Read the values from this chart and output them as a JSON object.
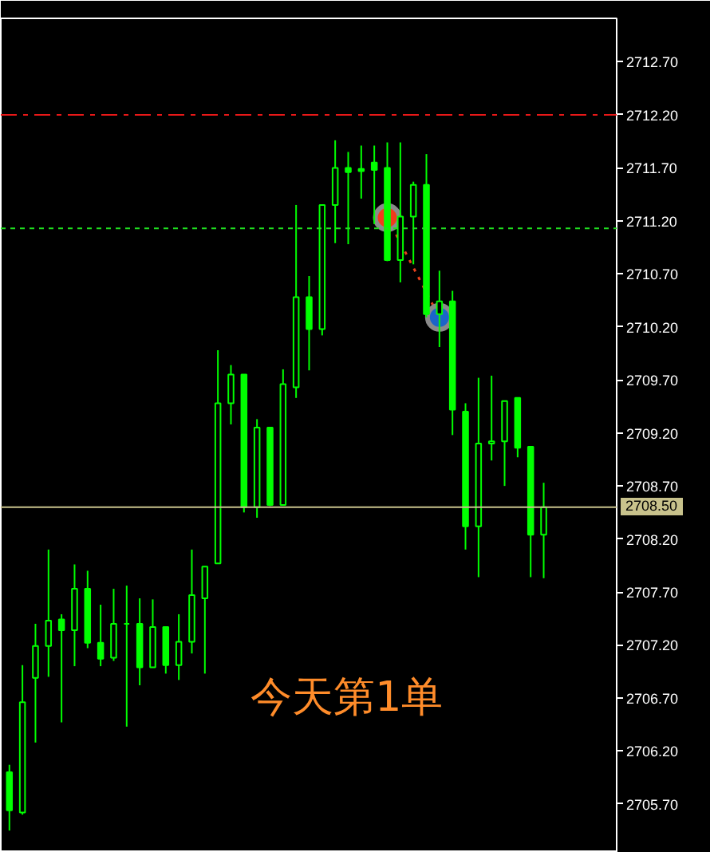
{
  "chart_data": {
    "type": "candlestick",
    "color": "#00ff00",
    "categories": [
      null,
      null,
      null,
      null,
      null,
      null,
      null,
      null,
      null,
      null,
      null,
      null,
      null,
      null,
      null,
      null,
      null,
      null,
      null,
      null,
      null,
      null,
      null,
      null,
      null,
      null,
      null,
      null,
      null,
      null,
      null,
      null,
      null,
      null,
      null,
      null,
      null,
      null,
      null,
      null,
      null,
      null
    ],
    "ohlc": [
      [
        2706.0,
        2706.07,
        2705.45,
        2705.64
      ],
      [
        2705.62,
        2707.01,
        2705.6,
        2706.66
      ],
      [
        2706.89,
        2707.4,
        2706.28,
        2707.19
      ],
      [
        2707.19,
        2708.1,
        2706.9,
        2707.43
      ],
      [
        2707.44,
        2707.49,
        2706.47,
        2707.34
      ],
      [
        2707.34,
        2707.96,
        2707.0,
        2707.73
      ],
      [
        2707.73,
        2707.9,
        2707.17,
        2707.22
      ],
      [
        2707.22,
        2707.58,
        2707.0,
        2707.07
      ],
      [
        2707.08,
        2707.73,
        2707.05,
        2707.4
      ],
      [
        2707.4,
        2707.76,
        2706.43,
        2707.4
      ],
      [
        2707.4,
        2707.64,
        2706.82,
        2706.99
      ],
      [
        2706.99,
        2707.63,
        2706.99,
        2707.37
      ],
      [
        2707.37,
        2707.37,
        2706.93,
        2707.01
      ],
      [
        2707.01,
        2707.49,
        2706.87,
        2707.23
      ],
      [
        2707.23,
        2708.1,
        2707.12,
        2707.67
      ],
      [
        2707.64,
        2707.94,
        2706.93,
        2707.94
      ],
      [
        2707.97,
        2709.98,
        2707.97,
        2709.48
      ],
      [
        2709.48,
        2709.84,
        2709.28,
        2709.75
      ],
      [
        2709.75,
        2709.75,
        2708.45,
        2708.5
      ],
      [
        2708.5,
        2709.33,
        2708.4,
        2709.25
      ],
      [
        2709.25,
        2709.25,
        2708.51,
        2708.52
      ],
      [
        2708.52,
        2709.8,
        2708.52,
        2709.66
      ],
      [
        2709.63,
        2711.35,
        2709.53,
        2710.48
      ],
      [
        2710.48,
        2710.68,
        2709.79,
        2710.18
      ],
      [
        2710.18,
        2711.35,
        2710.12,
        2711.35
      ],
      [
        2711.35,
        2711.96,
        2710.99,
        2711.7
      ],
      [
        2711.7,
        2711.85,
        2710.98,
        2711.66
      ],
      [
        2711.69,
        2711.91,
        2711.41,
        2711.67
      ],
      [
        2711.75,
        2711.91,
        2711.17,
        2711.68
      ],
      [
        2711.7,
        2711.94,
        2710.82,
        2710.83
      ],
      [
        2710.83,
        2711.94,
        2710.62,
        2711.24
      ],
      [
        2711.24,
        2711.57,
        2710.79,
        2711.54
      ],
      [
        2711.54,
        2711.83,
        2710.29,
        2710.32
      ],
      [
        2710.32,
        2710.73,
        2710.01,
        2710.44
      ],
      [
        2710.44,
        2710.54,
        2709.18,
        2709.42
      ],
      [
        2709.4,
        2709.48,
        2708.1,
        2708.32
      ],
      [
        2708.32,
        2709.72,
        2707.84,
        2709.1
      ],
      [
        2709.1,
        2709.74,
        2708.94,
        2709.12
      ],
      [
        2709.12,
        2709.5,
        2708.7,
        2709.5
      ],
      [
        2709.53,
        2709.53,
        2708.97,
        2709.06
      ],
      [
        2709.07,
        2709.07,
        2707.84,
        2708.24
      ],
      [
        2708.24,
        2708.73,
        2707.83,
        2708.5
      ]
    ],
    "series": [
      {
        "type": "line",
        "color": "#e8401c",
        "line_style": "dotted",
        "values": [
          null,
          null,
          null,
          null,
          null,
          null,
          null,
          null,
          null,
          null,
          null,
          null,
          null,
          null,
          null,
          null,
          null,
          null,
          null,
          null,
          null,
          null,
          null,
          null,
          null,
          null,
          null,
          null,
          null,
          2711.23,
          null,
          null,
          null,
          2710.29,
          null,
          null,
          null,
          null,
          null,
          null,
          null,
          null
        ]
      },
      {
        "type": "scatter",
        "marker": "circle",
        "color": "#8a8a8a",
        "colors": [
          null,
          null,
          null,
          null,
          null,
          null,
          null,
          null,
          null,
          null,
          null,
          null,
          null,
          null,
          null,
          null,
          null,
          null,
          null,
          null,
          null,
          null,
          null,
          null,
          null,
          null,
          null,
          null,
          null,
          "#f03c1c",
          null,
          null,
          null,
          "#1c64c8",
          null,
          null,
          null,
          null,
          null,
          null,
          null,
          null
        ],
        "values": [
          null,
          null,
          null,
          null,
          null,
          null,
          null,
          null,
          null,
          null,
          null,
          null,
          null,
          null,
          null,
          null,
          null,
          null,
          null,
          null,
          null,
          null,
          null,
          null,
          null,
          null,
          null,
          null,
          null,
          2711.23,
          null,
          null,
          null,
          2710.29,
          null,
          null,
          null,
          null,
          null,
          null,
          null,
          null
        ]
      }
    ],
    "ylim": [
      2705.24,
      2713.11
    ],
    "yticks": [
      {
        "value": 2705.7,
        "label": "2705.70"
      },
      {
        "value": 2706.2,
        "label": "2706.20"
      },
      {
        "value": 2706.7,
        "label": "2706.70"
      },
      {
        "value": 2707.2,
        "label": "2707.20"
      },
      {
        "value": 2707.7,
        "label": "2707.70"
      },
      {
        "value": 2708.2,
        "label": "2708.20"
      },
      {
        "value": 2708.7,
        "label": "2708.70"
      },
      {
        "value": 2709.2,
        "label": "2709.20"
      },
      {
        "value": 2709.7,
        "label": "2709.70"
      },
      {
        "value": 2710.2,
        "label": "2710.20"
      },
      {
        "value": 2710.7,
        "label": "2710.70"
      },
      {
        "value": 2711.2,
        "label": "2711.20"
      },
      {
        "value": 2711.7,
        "label": "2711.70"
      },
      {
        "value": 2712.2,
        "label": "2712.20"
      },
      {
        "value": 2712.7,
        "label": "2712.70"
      }
    ],
    "tick_labels": "y",
    "ref_lines": [
      {
        "axis": "y",
        "value": 2712.2,
        "color": "#e81818",
        "line_style": "dashdot"
      },
      {
        "axis": "y",
        "value": 2711.13,
        "color": "#20e020",
        "line_style": "dashed"
      },
      {
        "axis": "y",
        "value": 2708.5,
        "label": "2708.50",
        "color": "#c8c28c",
        "line_style": "solid"
      }
    ],
    "annotations": [
      "今天第1单"
    ]
  }
}
